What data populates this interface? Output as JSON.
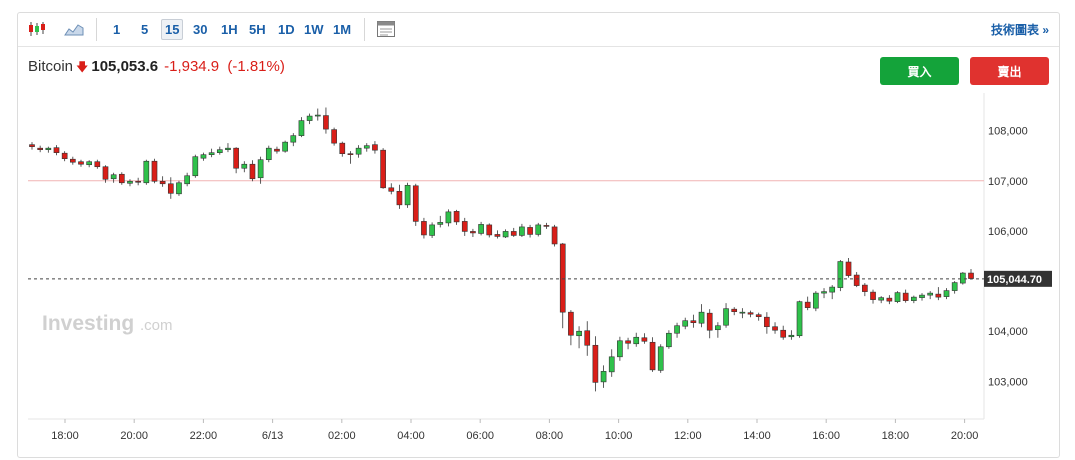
{
  "toolbar": {
    "intervals": [
      "1",
      "5",
      "15",
      "30",
      "1H",
      "5H",
      "1D",
      "1W",
      "1M"
    ],
    "active_interval": "15",
    "tech_chart_link": "技術圖表 »",
    "icons": [
      "candlestick-icon",
      "area-chart-icon",
      "calendar-icon"
    ]
  },
  "quote": {
    "name": "Bitcoin",
    "direction_icon": "down-arrow-icon",
    "price": "105,053.6",
    "change": "-1,934.9",
    "change_pct": "(-1.81%)"
  },
  "buttons": {
    "buy": "買入",
    "sell": "賣出"
  },
  "watermark": {
    "brand": "Investing",
    "suffix": ".com"
  },
  "colors": {
    "up": "#2fc14b",
    "down": "#d91e18",
    "reference_line": "#f1b4b4",
    "buy": "#14a33a",
    "sell": "#e0322f"
  },
  "chart_data": {
    "type": "candlestick",
    "y_ticks": [
      "108,000",
      "107,000",
      "106,000",
      "104,000",
      "103,000"
    ],
    "y_tick_values": [
      108000,
      107000,
      106000,
      104000,
      103000
    ],
    "ylim": [
      102250,
      108750
    ],
    "x_ticks": [
      "18:00",
      "20:00",
      "22:00",
      "6/13",
      "02:00",
      "04:00",
      "06:00",
      "08:00",
      "10:00",
      "12:00",
      "14:00",
      "16:00",
      "18:00",
      "20:00"
    ],
    "reference_line": 107000,
    "last_price": 105044.7,
    "last_price_label": "105,044.70",
    "ohlc": [
      [
        107720,
        107770,
        107620,
        107680
      ],
      [
        107650,
        107700,
        107570,
        107620
      ],
      [
        107620,
        107680,
        107560,
        107650
      ],
      [
        107660,
        107710,
        107510,
        107560
      ],
      [
        107550,
        107590,
        107390,
        107440
      ],
      [
        107430,
        107480,
        107320,
        107370
      ],
      [
        107380,
        107420,
        107280,
        107330
      ],
      [
        107320,
        107410,
        107270,
        107380
      ],
      [
        107380,
        107420,
        107240,
        107280
      ],
      [
        107280,
        107310,
        106960,
        107030
      ],
      [
        107040,
        107160,
        106960,
        107120
      ],
      [
        107130,
        107170,
        106920,
        106960
      ],
      [
        106950,
        107030,
        106890,
        106990
      ],
      [
        106990,
        107060,
        106910,
        106980
      ],
      [
        106960,
        107420,
        106920,
        107390
      ],
      [
        107390,
        107440,
        106950,
        106990
      ],
      [
        106990,
        107090,
        106880,
        106940
      ],
      [
        106940,
        107070,
        106640,
        106750
      ],
      [
        106740,
        107000,
        106700,
        106960
      ],
      [
        106940,
        107160,
        106890,
        107100
      ],
      [
        107100,
        107520,
        107060,
        107480
      ],
      [
        107450,
        107560,
        107400,
        107520
      ],
      [
        107520,
        107640,
        107470,
        107560
      ],
      [
        107560,
        107680,
        107520,
        107620
      ],
      [
        107620,
        107750,
        107570,
        107650
      ],
      [
        107650,
        107670,
        107150,
        107250
      ],
      [
        107250,
        107390,
        107170,
        107330
      ],
      [
        107330,
        107410,
        106990,
        107040
      ],
      [
        107060,
        107480,
        106940,
        107420
      ],
      [
        107420,
        107700,
        107370,
        107650
      ],
      [
        107630,
        107680,
        107540,
        107590
      ],
      [
        107590,
        107800,
        107560,
        107770
      ],
      [
        107770,
        107950,
        107690,
        107900
      ],
      [
        107900,
        108270,
        107870,
        108200
      ],
      [
        108200,
        108340,
        108130,
        108290
      ],
      [
        108290,
        108440,
        108200,
        108310
      ],
      [
        108300,
        108460,
        107940,
        108030
      ],
      [
        108020,
        108060,
        107700,
        107750
      ],
      [
        107750,
        107780,
        107480,
        107540
      ],
      [
        107540,
        107590,
        107340,
        107520
      ],
      [
        107530,
        107710,
        107460,
        107650
      ],
      [
        107650,
        107750,
        107580,
        107700
      ],
      [
        107720,
        107790,
        107540,
        107610
      ],
      [
        107610,
        107650,
        106840,
        106860
      ],
      [
        106860,
        106950,
        106730,
        106790
      ],
      [
        106790,
        106920,
        106440,
        106520
      ],
      [
        106520,
        106960,
        106460,
        106910
      ],
      [
        106900,
        106940,
        106100,
        106190
      ],
      [
        106190,
        106260,
        105850,
        105920
      ],
      [
        105910,
        106170,
        105860,
        106120
      ],
      [
        106130,
        106300,
        106070,
        106170
      ],
      [
        106160,
        106430,
        106090,
        106380
      ],
      [
        106390,
        106420,
        106120,
        106180
      ],
      [
        106190,
        106260,
        105900,
        105990
      ],
      [
        105990,
        106040,
        105880,
        105960
      ],
      [
        105950,
        106180,
        105910,
        106130
      ],
      [
        106120,
        106150,
        105870,
        105920
      ],
      [
        105930,
        106010,
        105850,
        105890
      ],
      [
        105880,
        106030,
        105860,
        105990
      ],
      [
        105990,
        106060,
        105880,
        105910
      ],
      [
        105910,
        106140,
        105880,
        106080
      ],
      [
        106070,
        106120,
        105870,
        105930
      ],
      [
        105930,
        106160,
        105890,
        106120
      ],
      [
        106110,
        106160,
        106040,
        106090
      ],
      [
        106080,
        106120,
        105690,
        105740
      ],
      [
        105740,
        105760,
        104060,
        104380
      ],
      [
        104380,
        104420,
        103720,
        103920
      ],
      [
        103910,
        104100,
        103660,
        104000
      ],
      [
        104010,
        104200,
        103510,
        103720
      ],
      [
        103720,
        103900,
        102800,
        102980
      ],
      [
        102990,
        103320,
        102870,
        103200
      ],
      [
        103190,
        103640,
        103090,
        103490
      ],
      [
        103490,
        103890,
        103410,
        103810
      ],
      [
        103810,
        103870,
        103640,
        103760
      ],
      [
        103750,
        103970,
        103690,
        103880
      ],
      [
        103870,
        103960,
        103750,
        103800
      ],
      [
        103780,
        103880,
        103190,
        103230
      ],
      [
        103220,
        103740,
        103170,
        103690
      ],
      [
        103690,
        104020,
        103650,
        103960
      ],
      [
        103960,
        104170,
        103870,
        104110
      ],
      [
        104100,
        104270,
        104040,
        104210
      ],
      [
        104210,
        104330,
        104070,
        104170
      ],
      [
        104160,
        104540,
        104080,
        104380
      ],
      [
        104360,
        104440,
        103860,
        104020
      ],
      [
        104030,
        104180,
        103870,
        104110
      ],
      [
        104120,
        104560,
        104070,
        104450
      ],
      [
        104440,
        104480,
        104320,
        104390
      ],
      [
        104380,
        104460,
        104260,
        104380
      ],
      [
        104370,
        104410,
        104280,
        104340
      ],
      [
        104330,
        104370,
        104210,
        104290
      ],
      [
        104280,
        104380,
        103950,
        104090
      ],
      [
        104090,
        104180,
        103950,
        104020
      ],
      [
        104020,
        104110,
        103830,
        103880
      ],
      [
        103890,
        104020,
        103830,
        103920
      ],
      [
        103910,
        104610,
        103870,
        104590
      ],
      [
        104580,
        104690,
        104420,
        104470
      ],
      [
        104460,
        104800,
        104400,
        104760
      ],
      [
        104760,
        104860,
        104660,
        104790
      ],
      [
        104780,
        104920,
        104640,
        104880
      ],
      [
        104870,
        105420,
        104800,
        105390
      ],
      [
        105380,
        105460,
        105070,
        105110
      ],
      [
        105120,
        105180,
        104880,
        104910
      ],
      [
        104920,
        104960,
        104700,
        104790
      ],
      [
        104780,
        104830,
        104550,
        104630
      ],
      [
        104620,
        104700,
        104560,
        104670
      ],
      [
        104660,
        104720,
        104540,
        104600
      ],
      [
        104590,
        104800,
        104560,
        104770
      ],
      [
        104760,
        104830,
        104570,
        104610
      ],
      [
        104610,
        104710,
        104560,
        104680
      ],
      [
        104670,
        104760,
        104610,
        104720
      ],
      [
        104720,
        104800,
        104640,
        104760
      ],
      [
        104740,
        104880,
        104620,
        104680
      ],
      [
        104690,
        104860,
        104640,
        104810
      ],
      [
        104810,
        105000,
        104750,
        104970
      ],
      [
        104960,
        105180,
        104930,
        105160
      ],
      [
        105160,
        105240,
        105030,
        105050
      ]
    ]
  }
}
